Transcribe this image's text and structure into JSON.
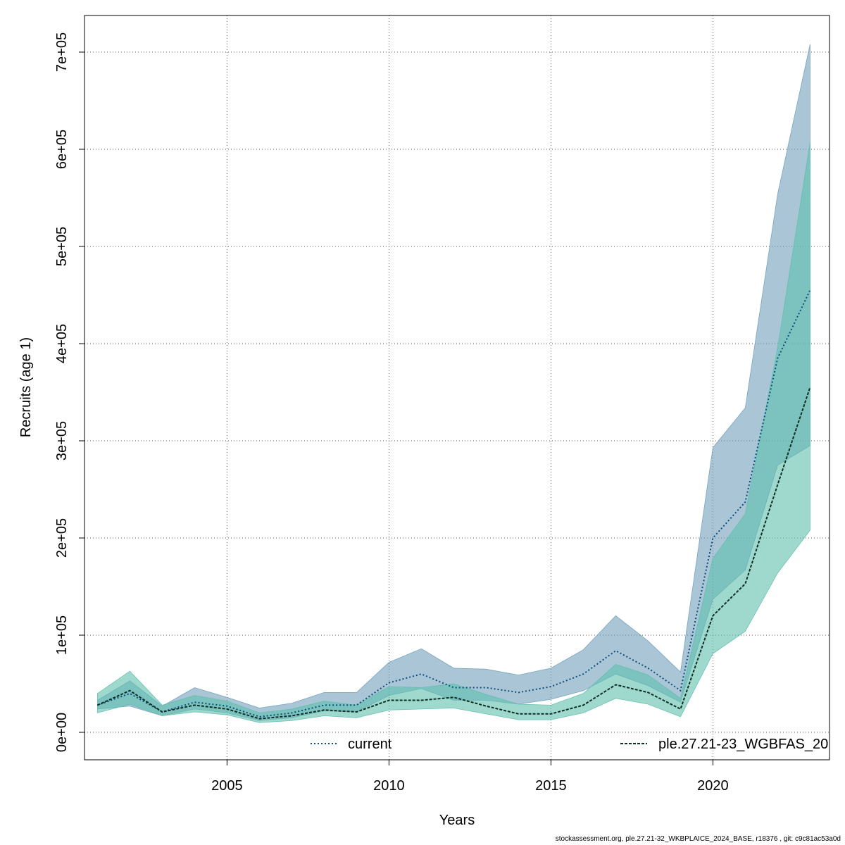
{
  "chart_data": {
    "type": "area",
    "xlabel": "Years",
    "ylabel": "Recruits (age 1)",
    "xlim": [
      2001,
      2023
    ],
    "ylim": [
      0,
      750000
    ],
    "x_ticks": [
      2005,
      2010,
      2015,
      2020
    ],
    "x_tick_labels": [
      "2005",
      "2010",
      "2015",
      "2020"
    ],
    "y_ticks": [
      0,
      100000,
      200000,
      300000,
      400000,
      500000,
      600000,
      700000
    ],
    "y_tick_labels": [
      "0e+00",
      "1e+05",
      "2e+05",
      "3e+05",
      "4e+05",
      "5e+05",
      "6e+05",
      "7e+05"
    ],
    "grid": true,
    "legend_position": "bottom",
    "x": [
      2001,
      2002,
      2003,
      2004,
      2005,
      2006,
      2007,
      2008,
      2009,
      2010,
      2011,
      2012,
      2013,
      2014,
      2015,
      2016,
      2017,
      2018,
      2019,
      2020,
      2021,
      2022,
      2023
    ],
    "series": [
      {
        "name": "current",
        "color": "#0b4f7a",
        "band_color": "#6f9fbb",
        "line_style": "dotted",
        "values": [
          28000,
          40000,
          21000,
          31000,
          27000,
          16000,
          20000,
          28000,
          28000,
          51000,
          60000,
          46000,
          46000,
          41000,
          47000,
          60000,
          84000,
          66000,
          43000,
          200000,
          237000,
          385000,
          455000
        ],
        "lower": [
          24000,
          27000,
          17000,
          24000,
          20000,
          12000,
          15000,
          22000,
          21000,
          38000,
          45000,
          33000,
          33000,
          29000,
          34000,
          43000,
          60000,
          48000,
          31000,
          137000,
          167000,
          275000,
          295000
        ],
        "upper": [
          33000,
          53000,
          27000,
          46000,
          36000,
          25000,
          30000,
          41000,
          41000,
          72000,
          86000,
          66000,
          65000,
          59000,
          66000,
          85000,
          120000,
          94000,
          62000,
          293000,
          334000,
          554000,
          708000
        ]
      },
      {
        "name": "ple.27.21-23_WGBFAS_20",
        "color": "#0d2e24",
        "band_color": "#5fbfad",
        "line_style": "dashed",
        "values": [
          28000,
          43000,
          21000,
          28000,
          24000,
          14000,
          17000,
          23000,
          21000,
          33000,
          33000,
          36000,
          27000,
          19000,
          19000,
          28000,
          49000,
          41000,
          24000,
          120000,
          153000,
          255000,
          355000
        ],
        "lower": [
          20000,
          29000,
          17000,
          21000,
          18000,
          10000,
          12000,
          17000,
          15000,
          23000,
          24000,
          25000,
          19000,
          13000,
          13000,
          20000,
          35000,
          29000,
          16000,
          81000,
          104000,
          164000,
          208000
        ],
        "upper": [
          40000,
          63000,
          28000,
          38000,
          32000,
          20000,
          24000,
          32000,
          28000,
          47000,
          46000,
          50000,
          39000,
          29000,
          28000,
          40000,
          70000,
          59000,
          35000,
          179000,
          225000,
          396000,
          607000
        ]
      }
    ]
  },
  "footer_text": "stockassessment.org, ple.27.21-32_WKBPLAICE_2024_BASE, r18376 , git: c9c81ac53a0d"
}
